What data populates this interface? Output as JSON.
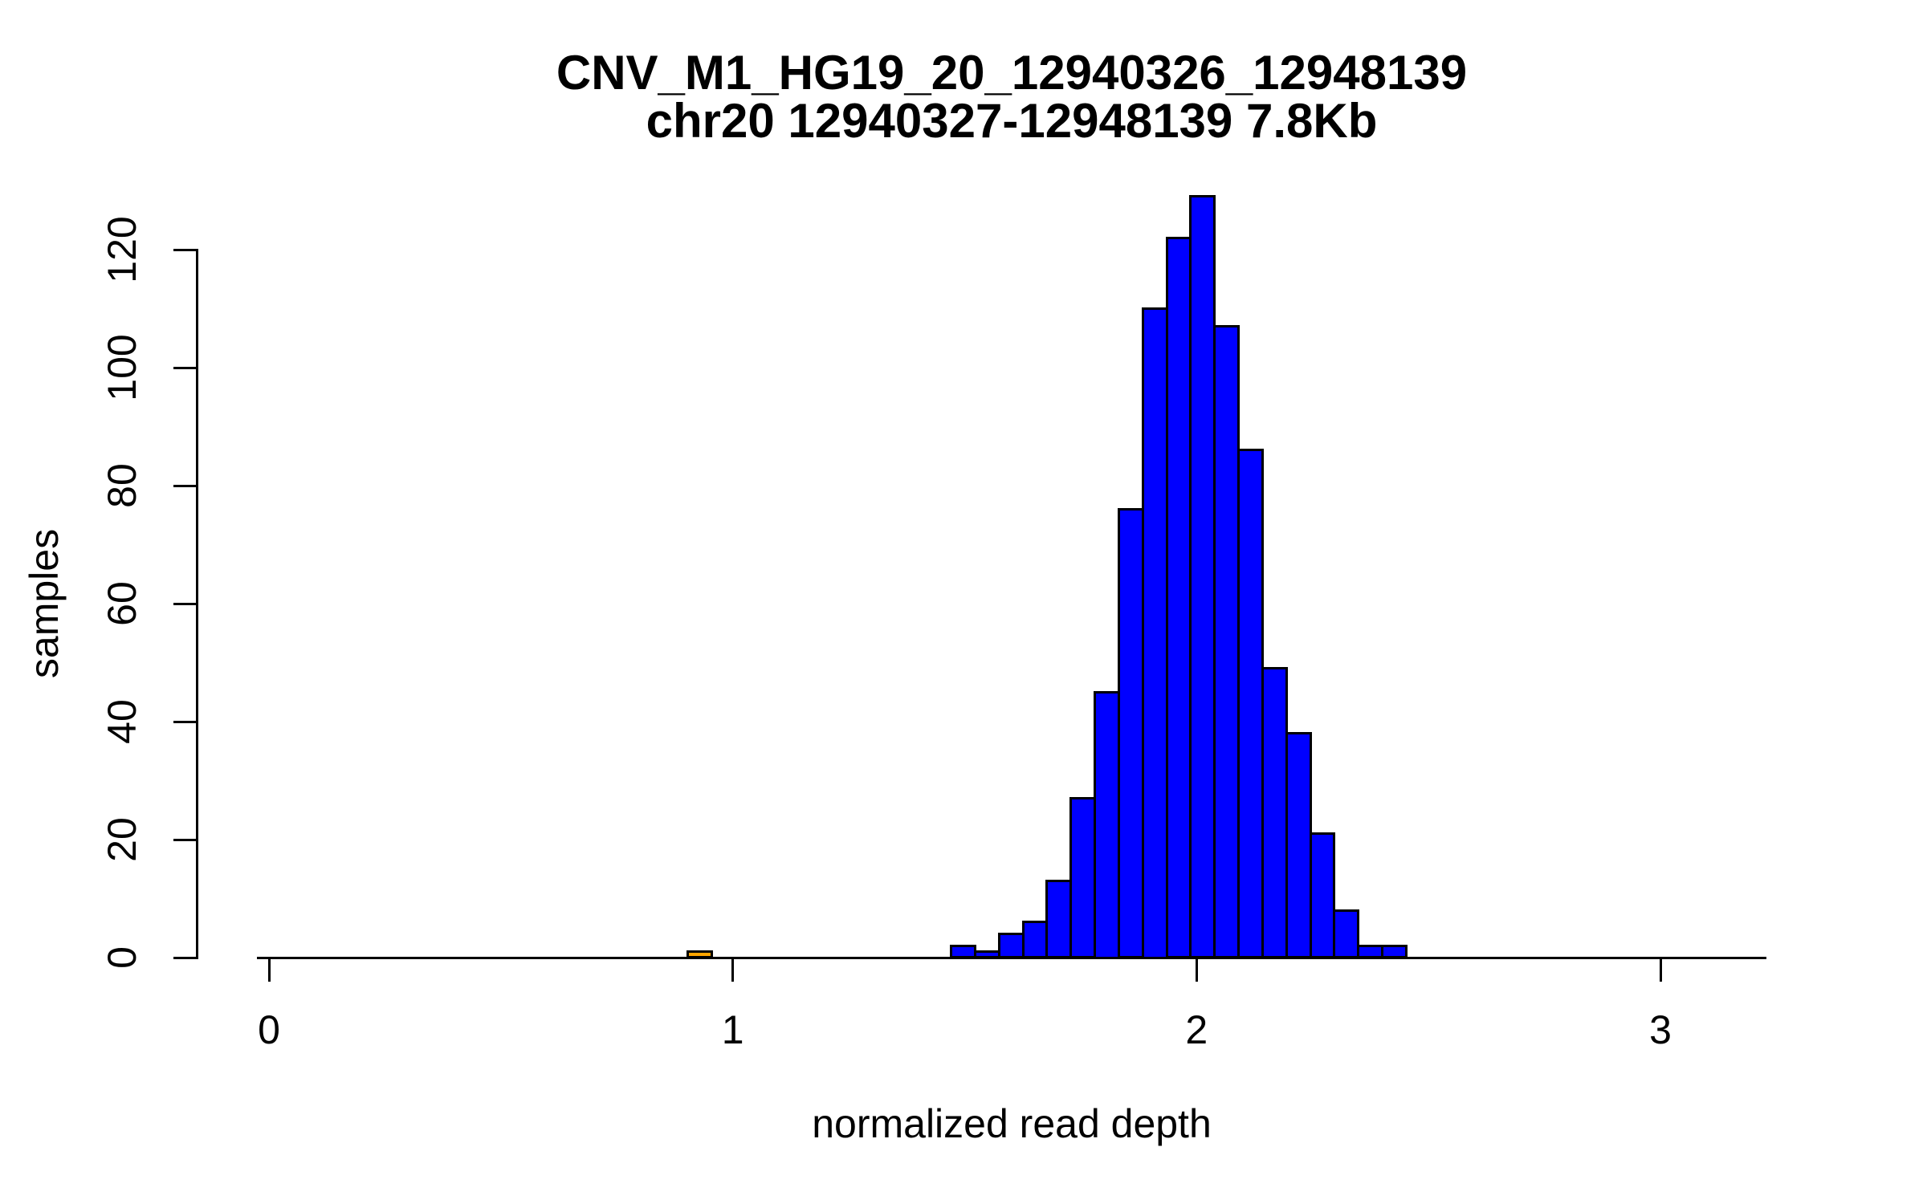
{
  "chart_data": {
    "type": "bar",
    "subtype": "histogram",
    "title": "CNV_M1_HG19_20_12940326_12948139",
    "subtitle": "chr20 12940327-12948139 7.8Kb",
    "xlabel": "normalized read depth",
    "ylabel": "samples",
    "x_ticks": [
      0,
      1,
      2,
      3
    ],
    "y_ticks": [
      0,
      20,
      40,
      60,
      80,
      100,
      120
    ],
    "xlim": [
      -0.03,
      3.25
    ],
    "ylim": [
      0,
      130
    ],
    "grid": false,
    "legend": false,
    "bin_width": 0.0516,
    "colors": {
      "bar_fill": "#0000FF",
      "highlight_fill": "#FFA500",
      "outline": "#000000",
      "background": "#FFFFFF"
    },
    "bars": [
      {
        "x0": 0.903,
        "x1": 0.9546,
        "count": 1,
        "series": "highlight"
      },
      {
        "x0": 1.4709,
        "x1": 1.5225,
        "count": 2,
        "series": "main"
      },
      {
        "x0": 1.5225,
        "x1": 1.5742,
        "count": 1,
        "series": "main"
      },
      {
        "x0": 1.5742,
        "x1": 1.6258,
        "count": 4,
        "series": "main"
      },
      {
        "x0": 1.6258,
        "x1": 1.6774,
        "count": 6,
        "series": "main"
      },
      {
        "x0": 1.6774,
        "x1": 1.7291,
        "count": 13,
        "series": "main"
      },
      {
        "x0": 1.7291,
        "x1": 1.7807,
        "count": 27,
        "series": "main"
      },
      {
        "x0": 1.7807,
        "x1": 1.8323,
        "count": 45,
        "series": "main"
      },
      {
        "x0": 1.8323,
        "x1": 1.884,
        "count": 76,
        "series": "main"
      },
      {
        "x0": 1.884,
        "x1": 1.9356,
        "count": 110,
        "series": "main"
      },
      {
        "x0": 1.9356,
        "x1": 1.9872,
        "count": 122,
        "series": "main"
      },
      {
        "x0": 1.9872,
        "x1": 2.0389,
        "count": 129,
        "series": "main"
      },
      {
        "x0": 2.0389,
        "x1": 2.0905,
        "count": 107,
        "series": "main"
      },
      {
        "x0": 2.0905,
        "x1": 2.1421,
        "count": 86,
        "series": "main"
      },
      {
        "x0": 2.1421,
        "x1": 2.1938,
        "count": 49,
        "series": "main"
      },
      {
        "x0": 2.1938,
        "x1": 2.2454,
        "count": 38,
        "series": "main"
      },
      {
        "x0": 2.2454,
        "x1": 2.297,
        "count": 21,
        "series": "main"
      },
      {
        "x0": 2.297,
        "x1": 2.3487,
        "count": 8,
        "series": "main"
      },
      {
        "x0": 2.3487,
        "x1": 2.4003,
        "count": 2,
        "series": "main"
      },
      {
        "x0": 2.4003,
        "x1": 2.4519,
        "count": 2,
        "series": "main"
      }
    ]
  }
}
